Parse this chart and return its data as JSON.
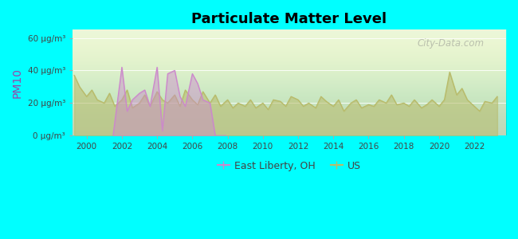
{
  "title": "Particulate Matter Level",
  "ylabel": "PM10",
  "background_color": "#00ffff",
  "plot_bg_color": "#e8f5d8",
  "us_color": "#b8bb6a",
  "el_color": "#cc88cc",
  "ylim": [
    0,
    65
  ],
  "yticks": [
    0,
    20,
    40,
    60
  ],
  "ytick_labels": [
    "0 μg/m³",
    "20 μg/m³",
    "40 μg/m³",
    "60 μg/m³"
  ],
  "xmin": 1999.2,
  "xmax": 2023.8,
  "xticks": [
    2000,
    2002,
    2004,
    2006,
    2008,
    2010,
    2012,
    2014,
    2016,
    2018,
    2020,
    2022
  ],
  "us_years": [
    1999.3,
    1999.6,
    2000.0,
    2000.3,
    2000.6,
    2001.0,
    2001.3,
    2001.6,
    2002.0,
    2002.3,
    2002.6,
    2003.0,
    2003.3,
    2003.6,
    2004.0,
    2004.3,
    2004.6,
    2005.0,
    2005.3,
    2005.6,
    2006.0,
    2006.3,
    2006.6,
    2007.0,
    2007.3,
    2007.6,
    2008.0,
    2008.3,
    2008.6,
    2009.0,
    2009.3,
    2009.6,
    2010.0,
    2010.3,
    2010.6,
    2011.0,
    2011.3,
    2011.6,
    2012.0,
    2012.3,
    2012.6,
    2013.0,
    2013.3,
    2013.6,
    2014.0,
    2014.3,
    2014.6,
    2015.0,
    2015.3,
    2015.6,
    2016.0,
    2016.3,
    2016.6,
    2017.0,
    2017.3,
    2017.6,
    2018.0,
    2018.3,
    2018.6,
    2019.0,
    2019.3,
    2019.6,
    2020.0,
    2020.3,
    2020.6,
    2021.0,
    2021.3,
    2021.6,
    2022.0,
    2022.3,
    2022.6,
    2023.0,
    2023.3
  ],
  "us_values": [
    37,
    30,
    24,
    28,
    22,
    20,
    26,
    18,
    22,
    28,
    17,
    20,
    25,
    18,
    27,
    22,
    20,
    25,
    18,
    28,
    22,
    19,
    27,
    20,
    25,
    18,
    22,
    17,
    20,
    18,
    22,
    17,
    20,
    16,
    22,
    21,
    18,
    24,
    22,
    18,
    20,
    17,
    24,
    21,
    18,
    22,
    15,
    20,
    22,
    17,
    19,
    18,
    22,
    20,
    25,
    19,
    20,
    18,
    22,
    17,
    19,
    22,
    18,
    22,
    39,
    25,
    29,
    22,
    18,
    15,
    21,
    20,
    24
  ],
  "el_years": [
    2001.5,
    2002.0,
    2002.3,
    2002.6,
    2003.0,
    2003.3,
    2003.6,
    2004.0,
    2004.3,
    2004.6,
    2005.0,
    2005.3,
    2005.6,
    2006.0,
    2006.3,
    2006.6,
    2007.0,
    2007.3,
    2007.6,
    2007.9
  ],
  "el_values": [
    0,
    42,
    15,
    22,
    26,
    28,
    18,
    42,
    3,
    38,
    40,
    24,
    18,
    38,
    32,
    22,
    20,
    0,
    0,
    0
  ],
  "watermark": "City-Data.com",
  "legend_el": "East Liberty, OH",
  "legend_us": "US"
}
